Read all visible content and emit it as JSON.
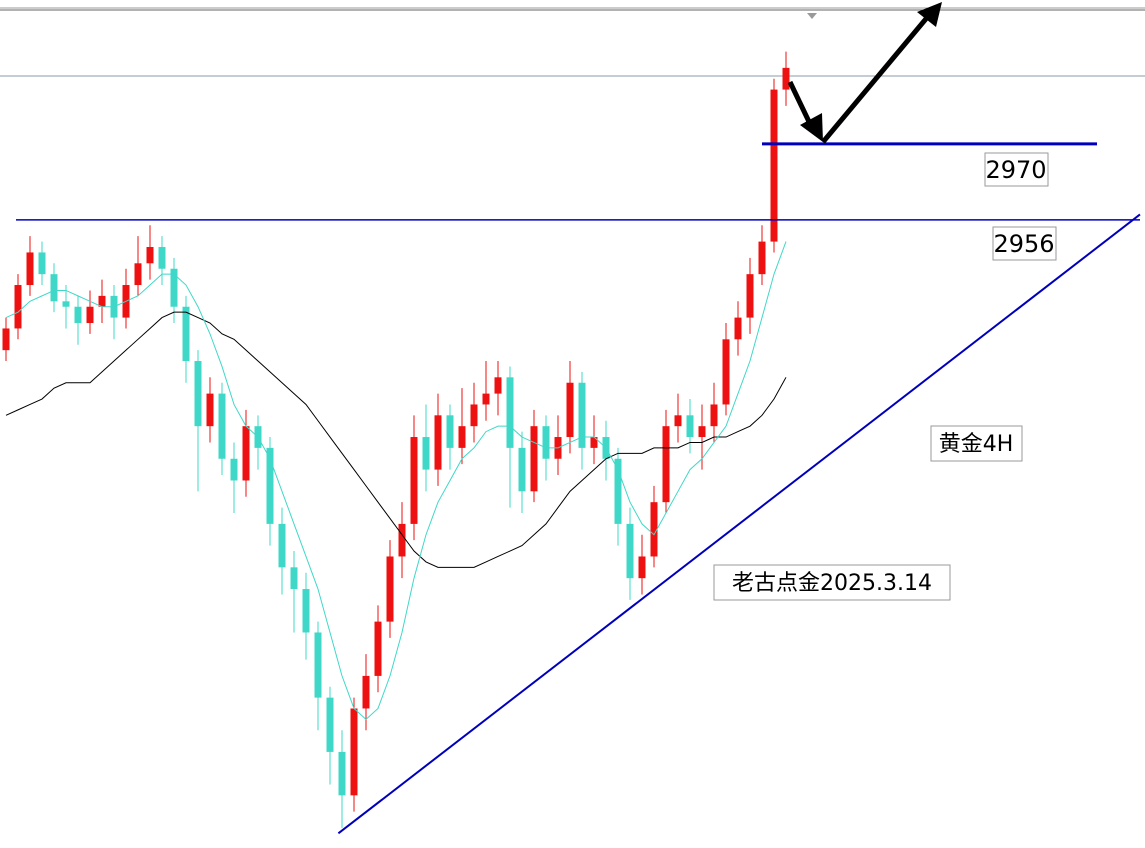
{
  "chart_data": {
    "type": "candlestick",
    "ylim": [
      2840.3,
      2996.5
    ],
    "open": [
      2932,
      2936,
      2944,
      2950,
      2946,
      2941,
      2940,
      2937,
      2940,
      2942,
      2938,
      2944,
      2948,
      2951,
      2947,
      2940,
      2930,
      2918,
      2924,
      2912,
      2908,
      2918,
      2914,
      2900,
      2892,
      2888,
      2880,
      2868,
      2858,
      2850,
      2866,
      2872,
      2882,
      2894,
      2900,
      2916,
      2910,
      2920,
      2914,
      2918,
      2922,
      2924,
      2927,
      2914,
      2906,
      2918,
      2912,
      2916,
      2926,
      2914,
      2916,
      2912,
      2900,
      2890,
      2894,
      2904,
      2918,
      2920,
      2916,
      2918,
      2922,
      2934,
      2938,
      2946,
      2952,
      2980
    ],
    "high": [
      2938,
      2946,
      2953,
      2952,
      2948,
      2944,
      2942,
      2943,
      2945,
      2944,
      2947,
      2953,
      2955,
      2953,
      2949,
      2942,
      2932,
      2927,
      2926,
      2915,
      2921,
      2920,
      2916,
      2903,
      2895,
      2891,
      2882,
      2870,
      2862,
      2868,
      2876,
      2885,
      2897,
      2904,
      2920,
      2922,
      2924,
      2922,
      2925,
      2926,
      2930,
      2930,
      2929,
      2917,
      2921,
      2920,
      2920,
      2930,
      2928,
      2920,
      2919,
      2914,
      2903,
      2898,
      2907,
      2921,
      2924,
      2923,
      2922,
      2926,
      2937,
      2941,
      2949,
      2955,
      2982,
      2987
    ],
    "low": [
      2930,
      2934,
      2942,
      2944,
      2939,
      2936,
      2933,
      2935,
      2937,
      2934,
      2936,
      2942,
      2945,
      2944,
      2937,
      2926,
      2906,
      2915,
      2909,
      2902,
      2905,
      2910,
      2896,
      2887,
      2880,
      2875,
      2862,
      2852,
      2844,
      2847,
      2862,
      2869,
      2879,
      2890,
      2897,
      2906,
      2907,
      2910,
      2911,
      2915,
      2919,
      2920,
      2903,
      2902,
      2904,
      2908,
      2909,
      2913,
      2910,
      2911,
      2908,
      2896,
      2886,
      2887,
      2892,
      2902,
      2915,
      2913,
      2910,
      2915,
      2920,
      2931,
      2935,
      2944,
      2950,
      2977
    ],
    "close": [
      2936,
      2944,
      2950,
      2946,
      2941,
      2940,
      2937,
      2940,
      2942,
      2938,
      2944,
      2948,
      2951,
      2947,
      2940,
      2930,
      2918,
      2924,
      2912,
      2908,
      2918,
      2914,
      2900,
      2892,
      2888,
      2880,
      2868,
      2858,
      2850,
      2866,
      2872,
      2882,
      2894,
      2900,
      2916,
      2910,
      2920,
      2914,
      2918,
      2922,
      2924,
      2927,
      2914,
      2906,
      2918,
      2912,
      2916,
      2926,
      2914,
      2916,
      2912,
      2900,
      2890,
      2894,
      2904,
      2918,
      2920,
      2916,
      2918,
      2922,
      2934,
      2938,
      2946,
      2952,
      2980,
      2984
    ],
    "up_color": "#ee1111",
    "down_color": "#3fd8c8",
    "lines": [
      {
        "color": "#000000",
        "values": [
          2920,
          2921,
          2922,
          2923,
          2925,
          2926,
          2926,
          2926,
          2928,
          2930,
          2932,
          2934,
          2936,
          2938,
          2939,
          2939,
          2938,
          2937,
          2935,
          2934,
          2932,
          2930,
          2928,
          2926,
          2924,
          2922,
          2919,
          2916,
          2913,
          2910,
          2907,
          2904,
          2901,
          2898,
          2895,
          2893,
          2892,
          2892,
          2892,
          2892,
          2893,
          2894,
          2895,
          2896,
          2898,
          2900,
          2903,
          2906,
          2908,
          2910,
          2912,
          2913,
          2913,
          2913,
          2914,
          2914,
          2914,
          2915,
          2915,
          2916,
          2916,
          2917,
          2918,
          2920,
          2923,
          2927
        ]
      },
      {
        "color": "#3fd8c8",
        "values": [
          2938,
          2939,
          2941,
          2942,
          2943,
          2943,
          2942,
          2941,
          2940,
          2940,
          2941,
          2942,
          2944,
          2946,
          2946,
          2944,
          2940,
          2935,
          2929,
          2922,
          2918,
          2916,
          2912,
          2906,
          2900,
          2894,
          2888,
          2880,
          2872,
          2866,
          2864,
          2866,
          2872,
          2880,
          2890,
          2898,
          2904,
          2908,
          2912,
          2914,
          2917,
          2918,
          2918,
          2916,
          2915,
          2914,
          2914,
          2915,
          2916,
          2916,
          2914,
          2910,
          2904,
          2900,
          2898,
          2902,
          2906,
          2910,
          2912,
          2915,
          2918,
          2924,
          2930,
          2938,
          2946,
          2952
        ]
      }
    ],
    "levels": [
      2970,
      2956
    ],
    "level_color": "#0000bb",
    "price_line": 2982.5,
    "trendline": {
      "x": [
        27.7,
        94.5
      ],
      "y": [
        2843,
        2957
      ]
    },
    "annotations": [
      "黄金4H",
      "老古点金2025.3.14"
    ]
  }
}
